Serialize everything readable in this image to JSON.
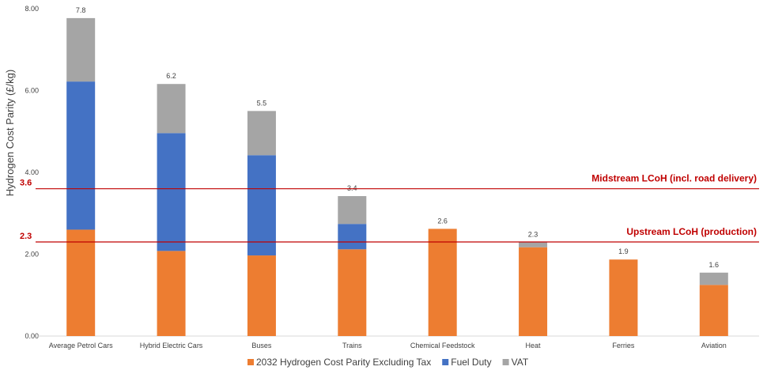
{
  "chart_data": {
    "type": "bar",
    "stacked": true,
    "ylabel": "Hydrogen Cost Parity (£/kg)",
    "ylim": [
      0,
      8
    ],
    "yticks": [
      "0.00",
      "2.00",
      "4.00",
      "6.00",
      "8.00"
    ],
    "grid": false,
    "legend": "bottom",
    "categories": [
      "Average Petrol Cars",
      "Hybrid Electric Cars",
      "Buses",
      "Trains",
      "Chemical Feedstock",
      "Heat",
      "Ferries",
      "Aviation"
    ],
    "series": [
      {
        "name": "2032 Hydrogen Cost Parity Excluding Tax",
        "color": "#ed7d31",
        "values": [
          2.6,
          2.08,
          1.97,
          2.12,
          2.62,
          2.17,
          1.87,
          1.25
        ]
      },
      {
        "name": "Fuel Duty",
        "color": "#4472c4",
        "values": [
          3.62,
          2.88,
          2.45,
          0.62,
          0,
          0,
          0,
          0
        ]
      },
      {
        "name": "VAT",
        "color": "#a5a5a5",
        "values": [
          1.55,
          1.2,
          1.08,
          0.68,
          0,
          0.12,
          0,
          0.3
        ]
      }
    ],
    "totals": [
      "7.8",
      "6.2",
      "5.5",
      "3.4",
      "2.6",
      "2.3",
      "1.9",
      "1.6"
    ],
    "reference_lines": [
      {
        "value": 3.6,
        "value_label": "3.6",
        "label": "Midstream LCoH (incl. road delivery)",
        "color": "#c00000"
      },
      {
        "value": 2.3,
        "value_label": "2.3",
        "label": "Upstream LCoH (production)",
        "color": "#c00000"
      }
    ]
  }
}
